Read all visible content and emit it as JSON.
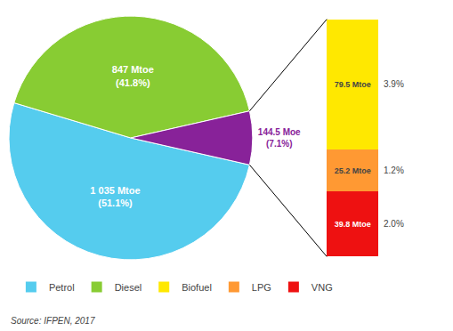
{
  "chart_data": [
    {
      "type": "pie",
      "categories": [
        "Petrol",
        "Diesel",
        null
      ],
      "values": [
        51.1,
        41.8,
        7.1
      ],
      "colors": [
        "#55CCEE",
        "#88CC33",
        "#882299"
      ],
      "value_labels": [
        "1 035 Mtoe\n(51.1%)",
        "847 Mtoe\n(41.8%)",
        "144.5 Moe\n(7.1%)"
      ],
      "data_labels": true,
      "legend": "bottom",
      "annotations": [
        "Source: IFPEN, 2017"
      ]
    },
    {
      "type": "bar",
      "stacked": true,
      "data_labels": true,
      "tick_labels": false,
      "ylim": [
        0,
        144.5
      ],
      "series": [
        {
          "name": "Biofuel",
          "color": "#FFE800",
          "values": [
            79.5
          ],
          "value_labels": [
            "79.5 Mtoe"
          ]
        },
        {
          "name": "LPG",
          "color": "#FF9933",
          "values": [
            25.2
          ],
          "value_labels": [
            "25.2 Mtoe"
          ]
        },
        {
          "name": "VNG",
          "color": "#EE1111",
          "values": [
            39.8
          ],
          "value_labels": [
            "39.8 Mtoe"
          ]
        }
      ],
      "annotations": [
        "3.9%",
        "1.2%",
        "2.0%"
      ]
    }
  ]
}
